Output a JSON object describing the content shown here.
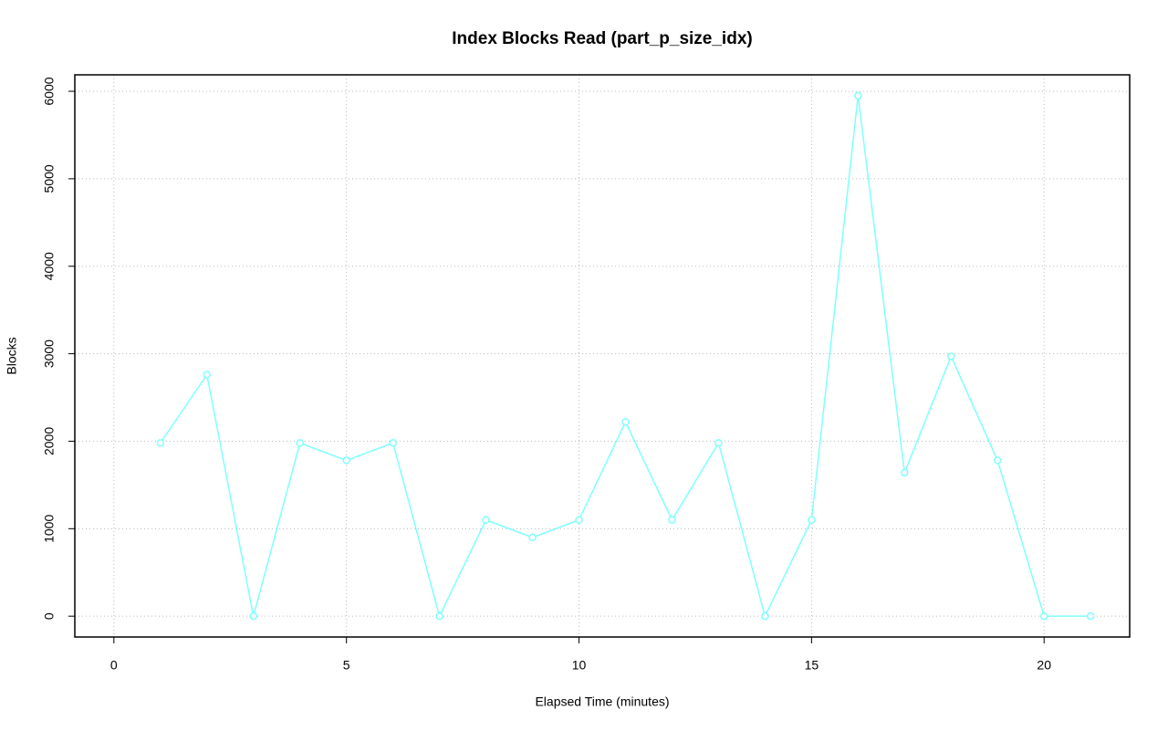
{
  "chart_data": {
    "type": "line",
    "title": "Index Blocks Read (part_p_size_idx)",
    "xlabel": "Elapsed Time (minutes)",
    "ylabel": "Blocks",
    "x": [
      1,
      2,
      3,
      4,
      5,
      6,
      7,
      8,
      9,
      10,
      11,
      12,
      13,
      14,
      15,
      16,
      17,
      18,
      19,
      20,
      21
    ],
    "series": [
      {
        "name": "Blocks",
        "color": "#7fffff",
        "values": [
          1980,
          2760,
          0,
          1980,
          1780,
          1980,
          0,
          1100,
          900,
          1100,
          2220,
          1100,
          1980,
          0,
          1100,
          5950,
          1640,
          2970,
          1780,
          0,
          0
        ]
      }
    ],
    "xlim": [
      -0.84,
      21.84
    ],
    "xticks": [
      0,
      5,
      10,
      15,
      20
    ],
    "ylim": [
      -238,
      6188
    ],
    "yticks": [
      0,
      1000,
      2000,
      3000,
      4000,
      5000,
      6000
    ],
    "grid": true
  }
}
